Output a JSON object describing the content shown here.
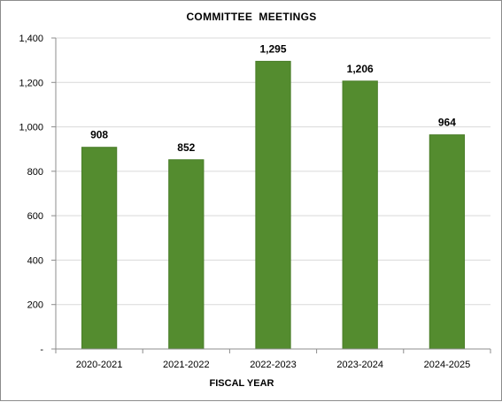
{
  "chart_data": {
    "type": "bar",
    "title": "COMMITTEE  MEETINGS",
    "xlabel": "FISCAL YEAR",
    "ylabel": "",
    "categories": [
      "2020-2021",
      "2021-2022",
      "2022-2023",
      "2023-2024",
      "2024-2025"
    ],
    "values": [
      908,
      852,
      1295,
      1206,
      964
    ],
    "data_labels": [
      "908",
      "852",
      "1,295",
      "1,206",
      "964"
    ],
    "ylim": [
      0,
      1400
    ],
    "yticks": [
      0,
      200,
      400,
      600,
      800,
      1000,
      1200,
      1400
    ],
    "ytick_labels": [
      "-",
      "200",
      "400",
      "600",
      "800",
      "1,000",
      "1,200",
      "1,400"
    ],
    "grid": true,
    "legend": "none",
    "colors": {
      "bar": "#548c2f",
      "bar_stroke": "#4a7d29",
      "grid": "#d9d9d9",
      "axis": "#8c8c8c"
    }
  }
}
